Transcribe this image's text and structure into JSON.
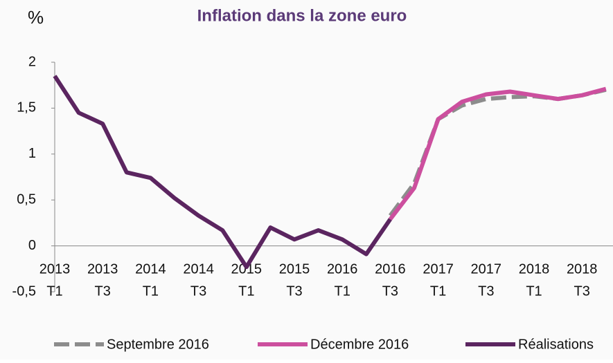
{
  "chart_data": {
    "type": "line",
    "title": "Inflation dans la zone euro",
    "y_label": "%",
    "categories": [
      [
        "2013",
        "T1"
      ],
      null,
      [
        "2013",
        "T3"
      ],
      null,
      [
        "2014",
        "T1"
      ],
      null,
      [
        "2014",
        "T3"
      ],
      null,
      [
        "2015",
        "T1"
      ],
      null,
      [
        "2015",
        "T3"
      ],
      null,
      [
        "2016",
        "T1"
      ],
      null,
      [
        "2016",
        "T3"
      ],
      null,
      [
        "2017",
        "T1"
      ],
      null,
      [
        "2017",
        "T3"
      ],
      null,
      [
        "2018",
        "T1"
      ],
      null,
      [
        "2018",
        "T3"
      ],
      null
    ],
    "series": [
      {
        "name": "Septembre 2016",
        "color": "#8c8c8c",
        "dash": true,
        "values": [
          null,
          null,
          null,
          null,
          null,
          null,
          null,
          null,
          null,
          null,
          null,
          null,
          null,
          null,
          0.33,
          0.68,
          1.38,
          1.53,
          1.6,
          1.62,
          1.63,
          1.6,
          1.64,
          1.7
        ]
      },
      {
        "name": "Décembre 2016",
        "color": "#cc4f9e",
        "dash": false,
        "values": [
          null,
          null,
          null,
          null,
          null,
          null,
          null,
          null,
          null,
          null,
          null,
          null,
          null,
          null,
          0.29,
          0.63,
          1.38,
          1.57,
          1.65,
          1.68,
          1.64,
          1.6,
          1.64,
          1.71
        ]
      },
      {
        "name": "Réalisations",
        "color": "#5b2560",
        "dash": false,
        "values": [
          1.85,
          1.45,
          1.33,
          0.8,
          0.74,
          0.52,
          0.33,
          0.17,
          -0.23,
          0.2,
          0.07,
          0.17,
          0.07,
          -0.09,
          0.29,
          null,
          null,
          null,
          null,
          null,
          null,
          null,
          null,
          null
        ]
      }
    ],
    "ylim": [
      -0.5,
      2
    ],
    "yticks": [
      {
        "value": -0.5,
        "label": "-0,5"
      },
      0,
      {
        "value": 0.5,
        "label": "0,5"
      },
      1,
      {
        "value": 1.5,
        "label": "1,5"
      },
      2
    ]
  }
}
